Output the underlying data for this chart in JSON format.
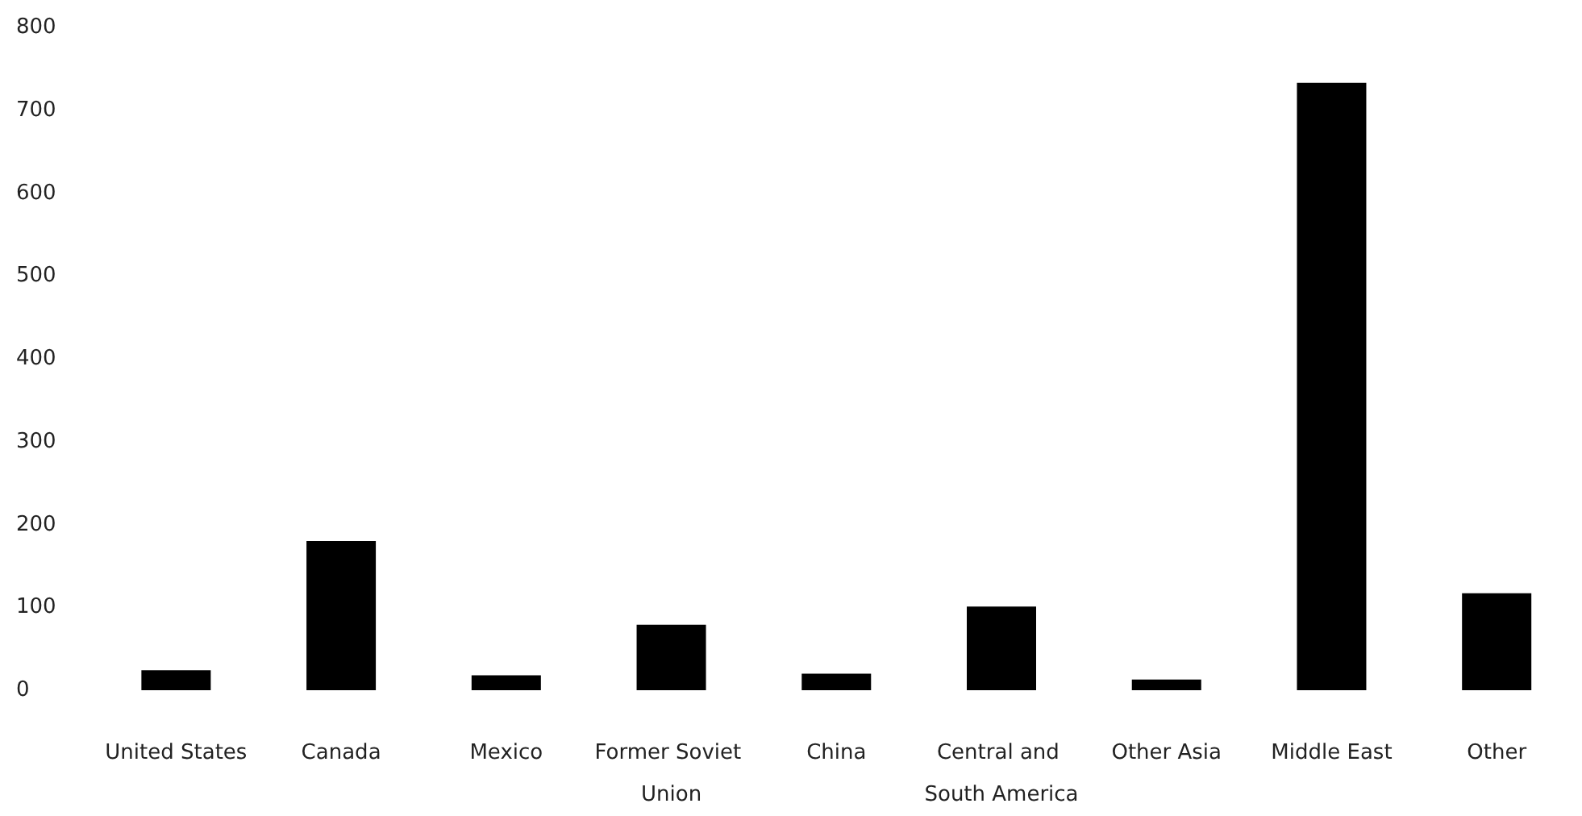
{
  "chart_data": {
    "type": "bar",
    "categories": [
      "United States",
      "Canada",
      "Mexico",
      "Former Soviet Union",
      "China",
      "Central and South America",
      "Other Asia",
      "Middle East",
      "Other"
    ],
    "values": [
      24,
      180,
      18,
      79,
      20,
      101,
      13,
      733,
      117
    ],
    "color": "#000000",
    "ylim": [
      0,
      800
    ],
    "yticks": [
      0,
      100,
      200,
      300,
      400,
      500,
      600,
      700,
      800
    ],
    "grid": false
  }
}
